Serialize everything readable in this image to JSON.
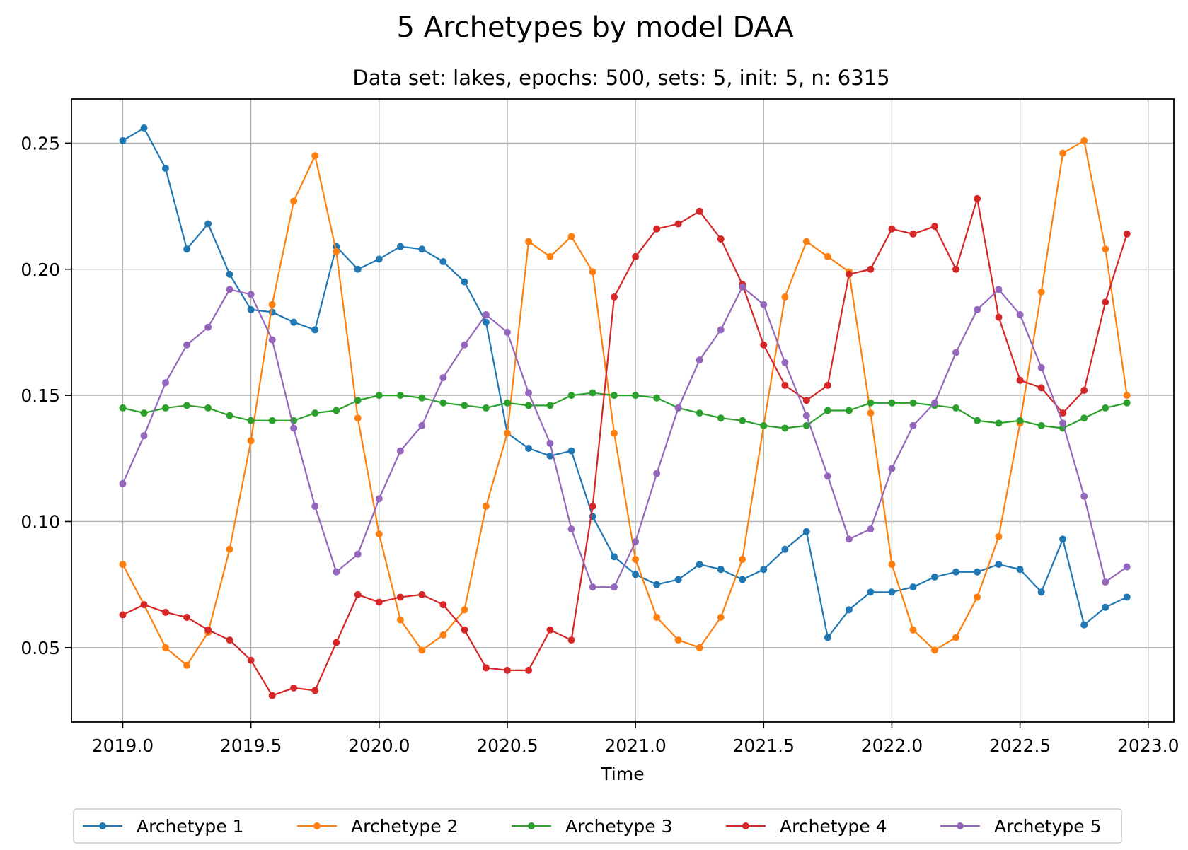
{
  "chart_data": {
    "type": "line",
    "title": "5 Archetypes by model DAA",
    "subtitle": "Data set: lakes, epochs: 500, sets: 5, init: 5, n: 6315",
    "xlabel": "Time",
    "ylabel": "",
    "xlim": [
      2018.8,
      2023.1
    ],
    "ylim": [
      0.0205,
      0.2675
    ],
    "xticks": [
      2019.0,
      2019.5,
      2020.0,
      2020.5,
      2021.0,
      2021.5,
      2022.0,
      2022.5,
      2023.0
    ],
    "xtick_labels": [
      "2019.0",
      "2019.5",
      "2020.0",
      "2020.5",
      "2021.0",
      "2021.5",
      "2022.0",
      "2022.5",
      "2023.0"
    ],
    "yticks": [
      0.05,
      0.1,
      0.15,
      0.2,
      0.25
    ],
    "ytick_labels": [
      "0.05",
      "0.10",
      "0.15",
      "0.20",
      "0.25"
    ],
    "grid": true,
    "legend_position": "bottom-center",
    "x": [
      2019.0,
      2019.083,
      2019.167,
      2019.25,
      2019.333,
      2019.417,
      2019.5,
      2019.583,
      2019.667,
      2019.75,
      2019.833,
      2019.917,
      2020.0,
      2020.083,
      2020.167,
      2020.25,
      2020.333,
      2020.417,
      2020.5,
      2020.583,
      2020.667,
      2020.75,
      2020.833,
      2020.917,
      2021.0,
      2021.083,
      2021.167,
      2021.25,
      2021.333,
      2021.417,
      2021.5,
      2021.583,
      2021.667,
      2021.75,
      2021.833,
      2021.917,
      2022.0,
      2022.083,
      2022.167,
      2022.25,
      2022.333,
      2022.417,
      2022.5,
      2022.583,
      2022.667,
      2022.75,
      2022.833,
      2022.917
    ],
    "series": [
      {
        "name": "Archetype 1",
        "color": "#1f77b4",
        "values": [
          0.251,
          0.256,
          0.24,
          0.208,
          0.218,
          0.198,
          0.184,
          0.183,
          0.179,
          0.176,
          0.209,
          0.2,
          0.204,
          0.209,
          0.208,
          0.203,
          0.195,
          0.179,
          0.135,
          0.129,
          0.126,
          0.128,
          0.102,
          0.086,
          0.079,
          0.075,
          0.077,
          0.083,
          0.081,
          0.077,
          0.081,
          0.089,
          0.096,
          0.054,
          0.065,
          0.072,
          0.072,
          0.074,
          0.078,
          0.08,
          0.08,
          0.083,
          0.081,
          0.072,
          0.093,
          0.059,
          0.066,
          0.07
        ]
      },
      {
        "name": "Archetype 2",
        "color": "#ff7f0e",
        "values": [
          0.083,
          0.067,
          0.05,
          0.043,
          0.056,
          0.089,
          0.132,
          0.186,
          0.227,
          0.245,
          0.207,
          0.141,
          0.095,
          0.061,
          0.049,
          0.055,
          0.065,
          0.106,
          0.135,
          0.211,
          0.205,
          0.213,
          0.199,
          0.135,
          0.085,
          0.062,
          0.053,
          0.05,
          0.062,
          0.085,
          0.138,
          0.189,
          0.211,
          0.205,
          0.199,
          0.143,
          0.083,
          0.057,
          0.049,
          0.054,
          0.07,
          0.094,
          0.139,
          0.191,
          0.246,
          0.251,
          0.208,
          0.15
        ]
      },
      {
        "name": "Archetype 3",
        "color": "#2ca02c",
        "values": [
          0.145,
          0.143,
          0.145,
          0.146,
          0.145,
          0.142,
          0.14,
          0.14,
          0.14,
          0.143,
          0.144,
          0.148,
          0.15,
          0.15,
          0.149,
          0.147,
          0.146,
          0.145,
          0.147,
          0.146,
          0.146,
          0.15,
          0.151,
          0.15,
          0.15,
          0.149,
          0.145,
          0.143,
          0.141,
          0.14,
          0.138,
          0.137,
          0.138,
          0.144,
          0.144,
          0.147,
          0.147,
          0.147,
          0.146,
          0.145,
          0.14,
          0.139,
          0.14,
          0.138,
          0.137,
          0.141,
          0.145,
          0.147
        ]
      },
      {
        "name": "Archetype 4",
        "color": "#d62728",
        "values": [
          0.063,
          0.067,
          0.064,
          0.062,
          0.057,
          0.053,
          0.045,
          0.031,
          0.034,
          0.033,
          0.052,
          0.071,
          0.068,
          0.07,
          0.071,
          0.067,
          0.057,
          0.042,
          0.041,
          0.041,
          0.057,
          0.053,
          0.106,
          0.189,
          0.205,
          0.216,
          0.218,
          0.223,
          0.212,
          0.194,
          0.17,
          0.154,
          0.148,
          0.154,
          0.198,
          0.2,
          0.216,
          0.214,
          0.217,
          0.2,
          0.228,
          0.181,
          0.156,
          0.153,
          0.143,
          0.152,
          0.187,
          0.214
        ]
      },
      {
        "name": "Archetype 5",
        "color": "#9467bd",
        "values": [
          0.115,
          0.134,
          0.155,
          0.17,
          0.177,
          0.192,
          0.19,
          0.172,
          0.137,
          0.106,
          0.08,
          0.087,
          0.109,
          0.128,
          0.138,
          0.157,
          0.17,
          0.182,
          0.175,
          0.151,
          0.131,
          0.097,
          0.074,
          0.074,
          0.092,
          0.119,
          0.145,
          0.164,
          0.176,
          0.193,
          0.186,
          0.163,
          0.142,
          0.118,
          0.093,
          0.097,
          0.121,
          0.138,
          0.147,
          0.167,
          0.184,
          0.192,
          0.182,
          0.161,
          0.139,
          0.11,
          0.076,
          0.082
        ]
      }
    ]
  }
}
